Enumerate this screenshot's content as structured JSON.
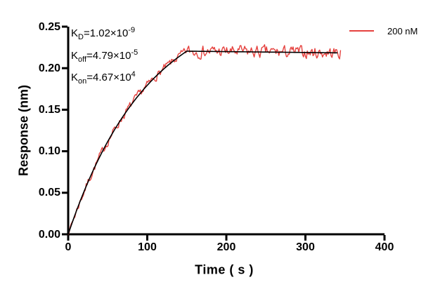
{
  "figure": {
    "background": "#ffffff"
  },
  "legend": {
    "position": "top-right",
    "items": [
      {
        "label": "200 nM",
        "color": "#E5413E"
      }
    ]
  },
  "annotation": {
    "lines": [
      {
        "base": "K",
        "sub": "D",
        "mid": "=1.02×10",
        "sup": "-9"
      },
      {
        "base": "K",
        "sub": "off",
        "mid": "=4.79×10",
        "sup": "-5"
      },
      {
        "base": "K",
        "sub": "on",
        "mid": "=4.67×10",
        "sup": "4"
      }
    ]
  },
  "chart_data": {
    "type": "line",
    "title": "",
    "xlabel": "Time ( s )",
    "ylabel": "Response (nm)",
    "xlim": [
      0,
      400
    ],
    "ylim": [
      0,
      0.25
    ],
    "grid": false,
    "legend_position": "top-right",
    "axis_color": "#000000",
    "x_ticks": [
      {
        "value": 0,
        "label": "0"
      },
      {
        "value": 100,
        "label": "100"
      },
      {
        "value": 200,
        "label": "200"
      },
      {
        "value": 300,
        "label": "300"
      },
      {
        "value": 400,
        "label": "400"
      }
    ],
    "y_ticks": [
      {
        "value": 0.0,
        "label": "0.00"
      },
      {
        "value": 0.05,
        "label": "0.05"
      },
      {
        "value": 0.1,
        "label": "0.10"
      },
      {
        "value": 0.15,
        "label": "0.15"
      },
      {
        "value": 0.2,
        "label": "0.20"
      },
      {
        "value": 0.25,
        "label": "0.25"
      }
    ],
    "kinetics": {
      "kd_M": 1.02e-09,
      "koff_per_s": 4.79e-05,
      "kon_per_M_s": 46700.0,
      "concentration": "200 nM"
    },
    "series": [
      {
        "name": "200 nM",
        "role": "measured",
        "color": "#E5413E",
        "stroke_width": 1.4,
        "model": {
          "req": 0.2838,
          "tau_s": 100,
          "assoc_end_s": 150,
          "koff_per_s": 4.79e-05,
          "t_start_s": 0,
          "t_end_s": 345,
          "noise_amp": 0.005,
          "noise_seed": 7
        }
      },
      {
        "name": "fit",
        "role": "fit",
        "color": "#000000",
        "stroke_width": 1.6,
        "model": {
          "req": 0.2838,
          "tau_s": 100,
          "assoc_end_s": 150,
          "koff_per_s": 4.79e-05,
          "t_start_s": 0,
          "t_end_s": 341,
          "noise_amp": 0,
          "noise_seed": 0
        }
      }
    ],
    "fit_points_sampled": [
      {
        "t": 0,
        "r": 0.0
      },
      {
        "t": 25,
        "r": 0.063
      },
      {
        "t": 50,
        "r": 0.112
      },
      {
        "t": 75,
        "r": 0.15
      },
      {
        "t": 100,
        "r": 0.179
      },
      {
        "t": 125,
        "r": 0.203
      },
      {
        "t": 150,
        "r": 0.221
      },
      {
        "t": 200,
        "r": 0.22
      },
      {
        "t": 250,
        "r": 0.22
      },
      {
        "t": 300,
        "r": 0.22
      },
      {
        "t": 345,
        "r": 0.219
      }
    ]
  }
}
